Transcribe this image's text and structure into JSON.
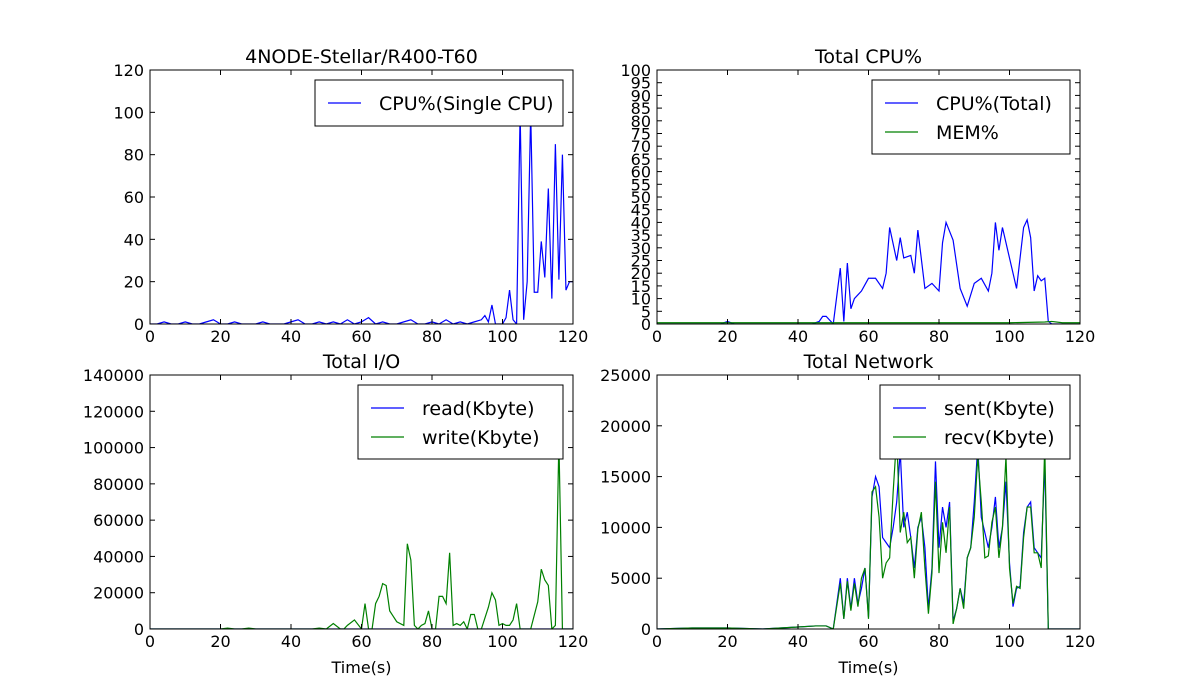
{
  "chart_data": [
    {
      "type": "line",
      "title": "4NODE-Stellar/R400-T60",
      "xlabel": "",
      "ylabel": "",
      "xlim": [
        0,
        120
      ],
      "ylim": [
        0,
        120
      ],
      "xticks": [
        "0",
        "20",
        "40",
        "60",
        "80",
        "100",
        "120"
      ],
      "yticks": [
        "0",
        "20",
        "40",
        "60",
        "80",
        "100",
        "120"
      ],
      "grid": false,
      "legend": "top-right",
      "series": [
        {
          "name": "CPU%(Single CPU)",
          "color": "#0000ff",
          "x": [
            0,
            2,
            4,
            6,
            8,
            10,
            12,
            14,
            16,
            18,
            20,
            22,
            24,
            26,
            28,
            30,
            32,
            34,
            36,
            38,
            40,
            42,
            44,
            46,
            48,
            50,
            52,
            54,
            56,
            58,
            60,
            62,
            64,
            66,
            68,
            70,
            72,
            74,
            76,
            78,
            80,
            82,
            84,
            86,
            88,
            90,
            92,
            94,
            95,
            96,
            97,
            98,
            100,
            101,
            102,
            103,
            104,
            105,
            106,
            107,
            108,
            109,
            110,
            111,
            112,
            113,
            114,
            115,
            116,
            117,
            118,
            119,
            120
          ],
          "y": [
            0,
            0,
            1,
            0,
            0,
            1,
            0,
            0,
            1,
            2,
            0,
            0,
            1,
            0,
            0,
            0,
            1,
            0,
            0,
            0,
            1,
            2,
            0,
            0,
            1,
            0,
            1,
            0,
            2,
            0,
            1,
            3,
            0,
            1,
            0,
            0,
            1,
            2,
            0,
            0,
            1,
            0,
            2,
            0,
            1,
            0,
            1,
            2,
            4,
            1,
            9,
            0,
            0,
            3,
            16,
            2,
            0,
            100,
            2,
            20,
            100,
            15,
            15,
            39,
            22,
            64,
            12,
            85,
            21,
            80,
            16,
            20,
            20
          ]
        }
      ]
    },
    {
      "type": "line",
      "title": "Total CPU%",
      "xlabel": "",
      "ylabel": "",
      "xlim": [
        0,
        120
      ],
      "ylim": [
        0,
        100
      ],
      "xticks": [
        "0",
        "20",
        "40",
        "60",
        "80",
        "100",
        "120"
      ],
      "yticks": [
        "0",
        "5",
        "10",
        "15",
        "20",
        "25",
        "30",
        "35",
        "40",
        "45",
        "50",
        "55",
        "60",
        "65",
        "70",
        "75",
        "80",
        "85",
        "90",
        "95",
        "100"
      ],
      "grid": false,
      "legend": "top-right",
      "series": [
        {
          "name": "CPU%(Total)",
          "color": "#0000ff",
          "x": [
            0,
            2,
            4,
            6,
            8,
            10,
            12,
            14,
            16,
            18,
            20,
            22,
            24,
            26,
            28,
            30,
            32,
            34,
            36,
            38,
            40,
            42,
            44,
            46,
            47,
            48,
            50,
            52,
            53,
            54,
            55,
            56,
            58,
            60,
            62,
            64,
            65,
            66,
            68,
            69,
            70,
            72,
            73,
            74,
            76,
            78,
            80,
            81,
            82,
            84,
            86,
            88,
            90,
            92,
            94,
            95,
            96,
            97,
            98,
            100,
            102,
            104,
            105,
            106,
            107,
            108,
            109,
            110,
            111,
            112,
            113,
            114,
            116,
            118,
            120
          ],
          "y": [
            0,
            0,
            0,
            0,
            0,
            0,
            0,
            0,
            0,
            0,
            1,
            0,
            0,
            0,
            0,
            0,
            0,
            0,
            0,
            0,
            0,
            0,
            0,
            1,
            3,
            3,
            0,
            22,
            1,
            24,
            6,
            10,
            13,
            18,
            18,
            14,
            20,
            38,
            25,
            34,
            26,
            27,
            20,
            37,
            14,
            16,
            13,
            32,
            40,
            33,
            14,
            7,
            16,
            18,
            13,
            20,
            40,
            29,
            38,
            26,
            14,
            38,
            41,
            34,
            13,
            19,
            17,
            18,
            1,
            0,
            0,
            0,
            0,
            0,
            0
          ]
        },
        {
          "name": "MEM%",
          "color": "#008000",
          "x": [
            0,
            20,
            40,
            60,
            80,
            100,
            110,
            112,
            115,
            120
          ],
          "y": [
            0.5,
            0.5,
            0.5,
            0.5,
            0.5,
            0.5,
            0.8,
            1,
            0.5,
            0.5
          ]
        }
      ]
    },
    {
      "type": "line",
      "title": "Total I/O",
      "xlabel": "Time(s)",
      "ylabel": "",
      "xlim": [
        0,
        120
      ],
      "ylim": [
        0,
        140000
      ],
      "xticks": [
        "0",
        "20",
        "40",
        "60",
        "80",
        "100",
        "120"
      ],
      "yticks": [
        "0",
        "20000",
        "40000",
        "60000",
        "80000",
        "100000",
        "120000",
        "140000"
      ],
      "grid": false,
      "legend": "top-right",
      "series": [
        {
          "name": "read(Kbyte)",
          "color": "#0000ff",
          "x": [
            0,
            120
          ],
          "y": [
            0,
            0
          ]
        },
        {
          "name": "write(Kbyte)",
          "color": "#008000",
          "x": [
            0,
            10,
            20,
            22,
            24,
            26,
            28,
            30,
            40,
            46,
            48,
            50,
            52,
            54,
            55,
            56,
            58,
            60,
            61,
            62,
            63,
            64,
            65,
            66,
            67,
            68,
            69,
            70,
            72,
            73,
            74,
            75,
            76,
            77,
            78,
            79,
            80,
            81,
            82,
            83,
            84,
            85,
            86,
            87,
            88,
            89,
            90,
            91,
            92,
            93,
            94,
            96,
            97,
            98,
            99,
            100,
            101,
            102,
            103,
            104,
            105,
            106,
            107,
            108,
            110,
            111,
            112,
            113,
            114,
            115,
            116,
            117,
            118,
            119,
            120
          ],
          "y": [
            0,
            0,
            0,
            500,
            0,
            0,
            500,
            0,
            0,
            0,
            500,
            0,
            3000,
            0,
            0,
            2000,
            5000,
            0,
            14000,
            0,
            0,
            14000,
            18000,
            25000,
            24000,
            10000,
            7000,
            4000,
            2000,
            47000,
            38000,
            2000,
            0,
            2000,
            3000,
            10000,
            0,
            0,
            18000,
            18000,
            14000,
            42000,
            2000,
            3000,
            2000,
            4000,
            0,
            8000,
            8000,
            0,
            0,
            12000,
            20000,
            16000,
            2000,
            3000,
            2000,
            2000,
            5000,
            14000,
            0,
            0,
            0,
            0,
            15000,
            33000,
            27000,
            24000,
            0,
            2000,
            104000,
            0,
            0,
            0,
            0
          ]
        }
      ]
    },
    {
      "type": "line",
      "title": "Total Network",
      "xlabel": "Time(s)",
      "ylabel": "",
      "xlim": [
        0,
        120
      ],
      "ylim": [
        0,
        25000
      ],
      "xticks": [
        "0",
        "20",
        "40",
        "60",
        "80",
        "100",
        "120"
      ],
      "yticks": [
        "0",
        "5000",
        "10000",
        "15000",
        "20000",
        "25000"
      ],
      "grid": false,
      "legend": "top-right",
      "series": [
        {
          "name": "sent(Kbyte)",
          "color": "#0000ff",
          "x": [
            0,
            10,
            20,
            30,
            40,
            45,
            48,
            50,
            52,
            53,
            54,
            55,
            56,
            57,
            58,
            59,
            60,
            61,
            62,
            63,
            64,
            65,
            66,
            67,
            68,
            69,
            70,
            71,
            72,
            73,
            74,
            75,
            76,
            77,
            78,
            79,
            80,
            81,
            82,
            83,
            84,
            85,
            86,
            87,
            88,
            89,
            90,
            91,
            92,
            93,
            94,
            95,
            96,
            97,
            98,
            99,
            100,
            101,
            102,
            103,
            104,
            105,
            106,
            107,
            108,
            109,
            110,
            111,
            112,
            113,
            114,
            115,
            116,
            118,
            120
          ],
          "y": [
            0,
            100,
            100,
            0,
            200,
            300,
            300,
            0,
            5000,
            1000,
            5000,
            2000,
            5000,
            2500,
            4000,
            6000,
            1200,
            13000,
            15000,
            14000,
            9000,
            8500,
            8000,
            10000,
            12500,
            17500,
            10000,
            11500,
            9000,
            6000,
            10000,
            11000,
            8000,
            2000,
            6000,
            16500,
            8000,
            12000,
            10000,
            12500,
            800,
            2000,
            4000,
            2500,
            7000,
            8000,
            12500,
            18000,
            11000,
            9500,
            8000,
            10000,
            13000,
            8000,
            10000,
            14500,
            6500,
            2200,
            4000,
            4200,
            9500,
            12000,
            12500,
            8000,
            7500,
            7000,
            16500,
            0,
            0,
            0,
            0,
            0,
            0,
            0,
            0
          ]
        },
        {
          "name": "recv(Kbyte)",
          "color": "#008000",
          "x": [
            0,
            10,
            20,
            30,
            40,
            45,
            48,
            50,
            52,
            53,
            54,
            55,
            56,
            57,
            58,
            59,
            60,
            61,
            62,
            63,
            64,
            65,
            66,
            67,
            68,
            69,
            70,
            71,
            72,
            73,
            74,
            75,
            76,
            77,
            78,
            79,
            80,
            81,
            82,
            83,
            84,
            85,
            86,
            87,
            88,
            89,
            90,
            91,
            92,
            93,
            94,
            95,
            96,
            97,
            98,
            99,
            100,
            101,
            102,
            103,
            104,
            105,
            106,
            107,
            108,
            109,
            110,
            111,
            112,
            113,
            114,
            115,
            116,
            118,
            120
          ],
          "y": [
            0,
            100,
            100,
            0,
            200,
            300,
            300,
            0,
            4500,
            1000,
            4700,
            1800,
            4500,
            2200,
            5000,
            6000,
            1000,
            13500,
            14000,
            11000,
            5000,
            6500,
            7000,
            13500,
            19000,
            9500,
            11500,
            8500,
            9000,
            5000,
            9800,
            11500,
            6000,
            1500,
            5500,
            14500,
            5500,
            10500,
            7500,
            12000,
            500,
            2000,
            4000,
            2000,
            7000,
            8000,
            11000,
            17000,
            12500,
            7000,
            7200,
            10500,
            12000,
            7000,
            10000,
            17000,
            6000,
            2500,
            4200,
            4000,
            9000,
            12000,
            12000,
            7500,
            7500,
            6000,
            18000,
            0,
            0,
            0,
            0,
            0,
            0,
            0,
            0
          ]
        }
      ]
    }
  ]
}
